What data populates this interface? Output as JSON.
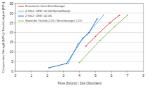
{
  "chart_data": {
    "type": "line",
    "x_label": "Time [hours] / Zeit [Stunden]",
    "y_label": "Compressive Strength [MPa] / Druckfestigkeit [MPa]",
    "xlim": [
      0,
      8
    ],
    "xticks": [
      0,
      1,
      2,
      3,
      4,
      5,
      6,
      7,
      8
    ],
    "ylim": [
      0,
      35
    ],
    "yticks": [
      0,
      5,
      10,
      15,
      20,
      25,
      30,
      35
    ],
    "grid": true,
    "legend": "upper left",
    "marker": "circle",
    "series": [
      {
        "name": "Ecocement / kein Beschleuniger",
        "color": "#e8473a",
        "x": [
          4.4,
          5.0,
          5.9,
          6.5
        ],
        "values": [
          13,
          18,
          25,
          29
        ]
      },
      {
        "name": "Z 9312: CEM I 52,5N Normal/Sampl",
        "color": "#6fc6e8",
        "x": [
          3.3,
          3.9,
          4.5,
          5.5
        ],
        "values": [
          4,
          14,
          19,
          29
        ]
      },
      {
        "name": "Z 9312: CEM I 42,5N",
        "color": "#2f6fc2",
        "x": [
          2.1,
          3.2,
          4.2,
          4.6,
          5.1
        ],
        "values": [
          1.8,
          4,
          17,
          20,
          27
        ]
      },
      {
        "name": "Stand der Technik 2,5% / Beschleuniger 1,5%",
        "color": "#8bbf4a",
        "x": [
          4.0,
          5.3,
          6.2,
          7.0
        ],
        "values": [
          4.5,
          16,
          23,
          29
        ]
      }
    ]
  }
}
